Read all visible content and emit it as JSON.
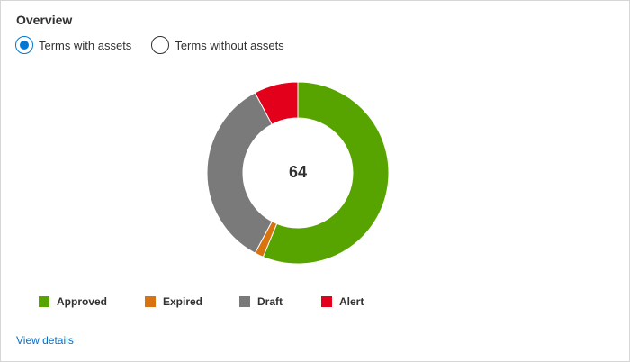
{
  "card": {
    "title": "Overview",
    "view_details_label": "View details"
  },
  "filter": {
    "options": [
      {
        "label": "Terms with assets",
        "selected": true
      },
      {
        "label": "Terms without assets",
        "selected": false
      }
    ]
  },
  "chart_data": {
    "type": "pie",
    "center_label": "64",
    "series": [
      {
        "name": "Approved",
        "value": 36,
        "color": "#57a300"
      },
      {
        "name": "Expired",
        "value": 1,
        "color": "#d9730d"
      },
      {
        "name": "Draft",
        "value": 22,
        "color": "#7a7a7a"
      },
      {
        "name": "Alert",
        "value": 5,
        "color": "#e3001b"
      }
    ],
    "legend_position": "bottom-left"
  }
}
